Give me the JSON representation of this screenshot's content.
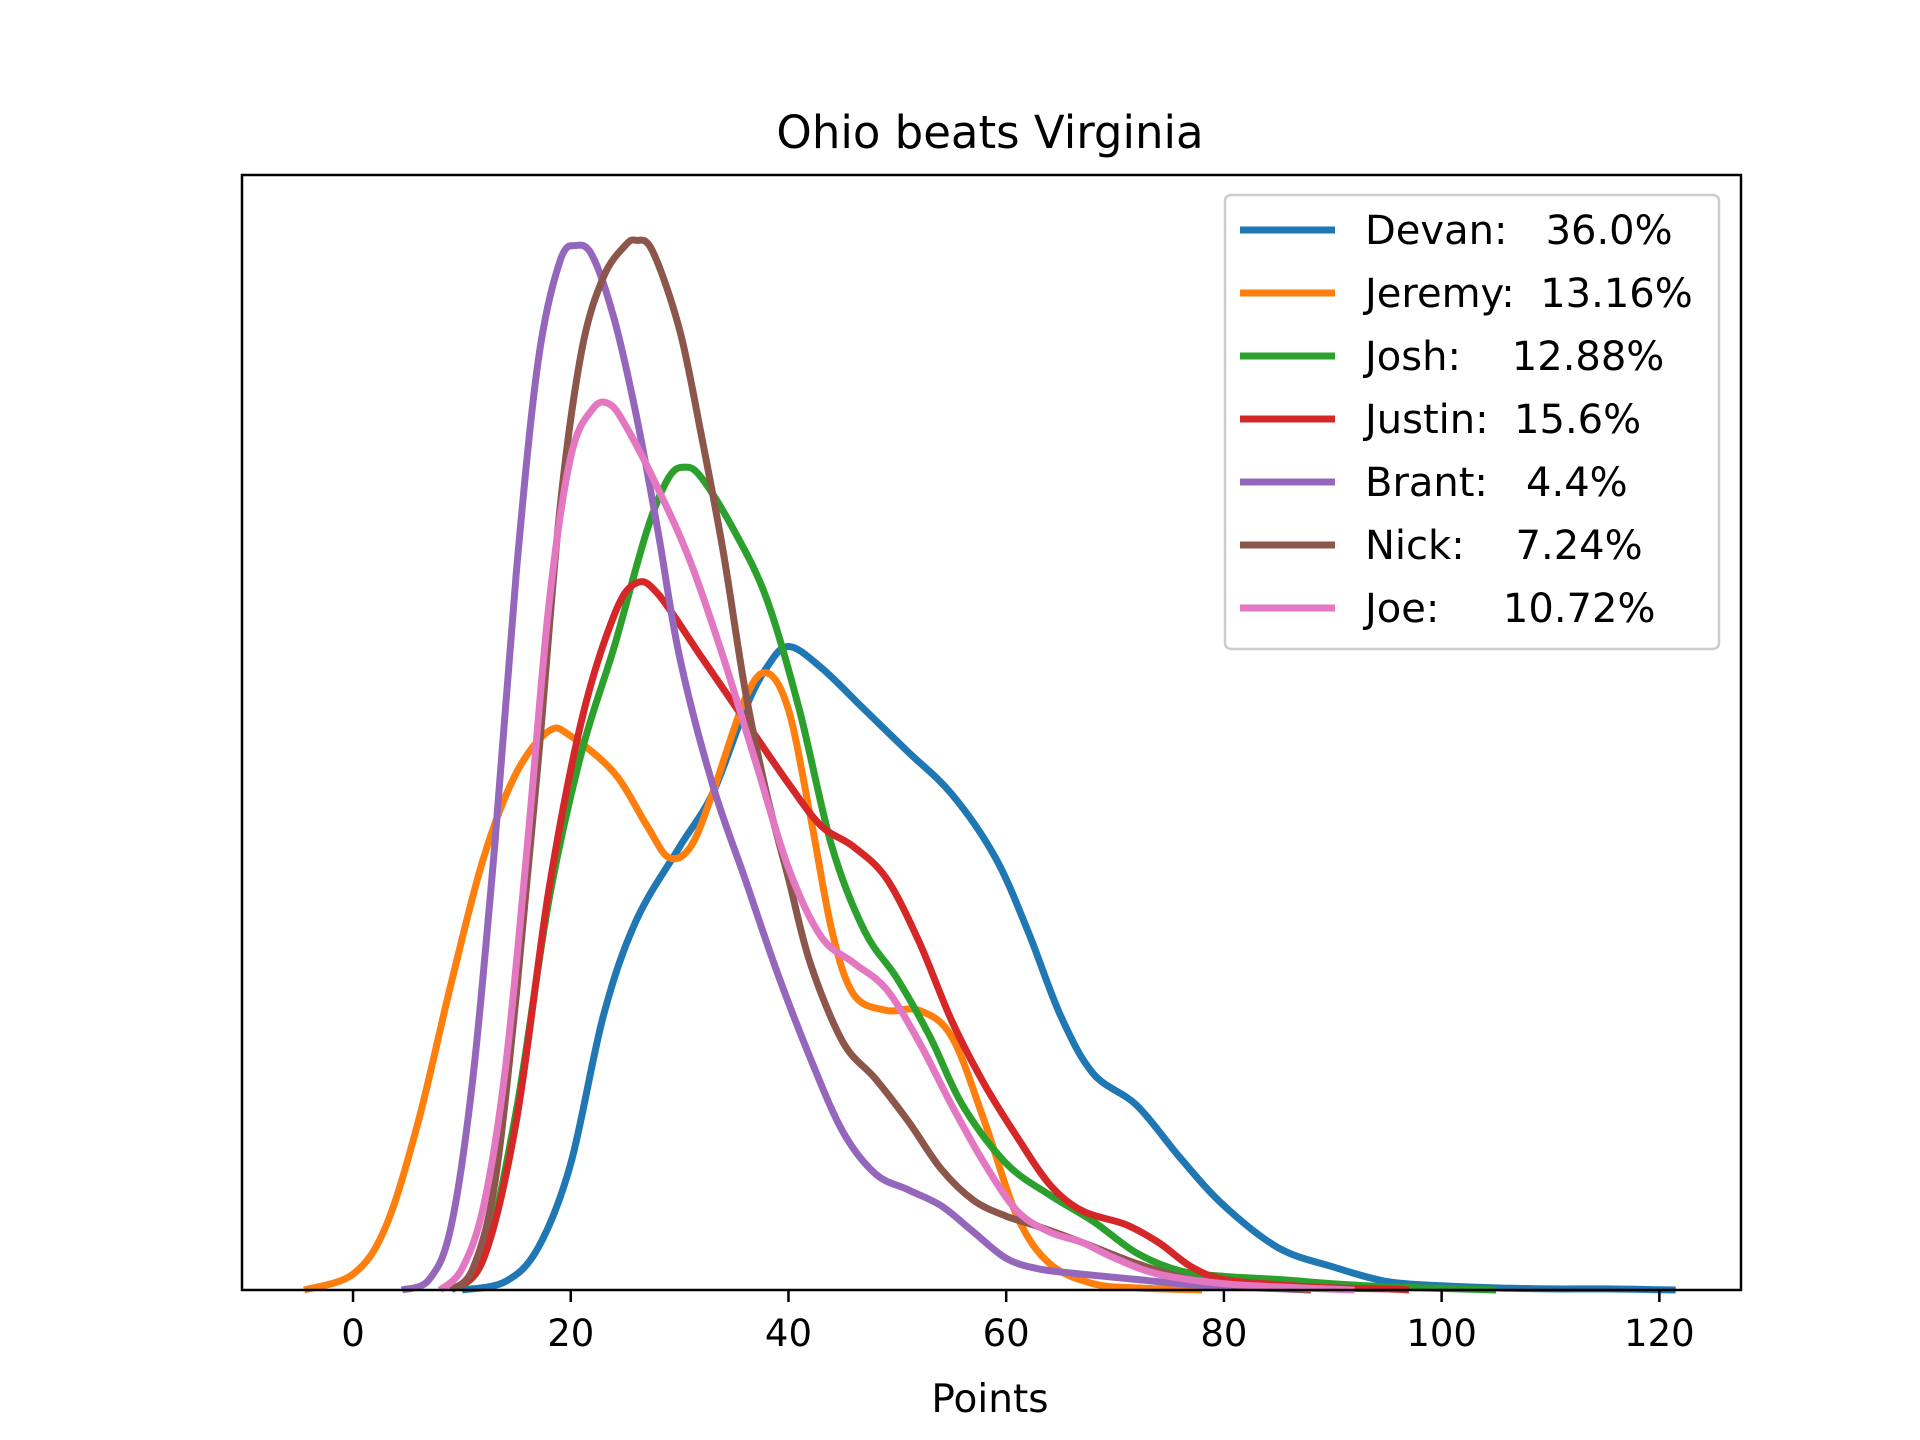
{
  "chart_data": {
    "type": "line",
    "title": "Ohio beats Virginia",
    "xlabel": "Points",
    "ylabel": "",
    "xlim": [
      -10.2,
      127.5
    ],
    "ylim": [
      0,
      1.0
    ],
    "xticks": [
      0,
      20,
      40,
      60,
      80,
      100,
      120
    ],
    "xtick_labels": [
      "0",
      "20",
      "40",
      "60",
      "80",
      "100",
      "120"
    ],
    "y_ticks_visible": false,
    "grid": false,
    "legend_position": "top-right",
    "series": [
      {
        "name": "Devan:   36.0%",
        "color": "#1f77b4",
        "points": [
          [
            10,
            0.0
          ],
          [
            14,
            0.008
          ],
          [
            17,
            0.04
          ],
          [
            20,
            0.12
          ],
          [
            23,
            0.26
          ],
          [
            26,
            0.35
          ],
          [
            30,
            0.42
          ],
          [
            33,
            0.47
          ],
          [
            36,
            0.55
          ],
          [
            38,
            0.59
          ],
          [
            40,
            0.61
          ],
          [
            43,
            0.59
          ],
          [
            47,
            0.55
          ],
          [
            51,
            0.51
          ],
          [
            55,
            0.47
          ],
          [
            59,
            0.41
          ],
          [
            62,
            0.34
          ],
          [
            65,
            0.26
          ],
          [
            68,
            0.205
          ],
          [
            72,
            0.175
          ],
          [
            76,
            0.125
          ],
          [
            80,
            0.08
          ],
          [
            85,
            0.04
          ],
          [
            90,
            0.022
          ],
          [
            95,
            0.008
          ],
          [
            100,
            0.004
          ],
          [
            105,
            0.002
          ],
          [
            110,
            0.001
          ],
          [
            115,
            0.001
          ],
          [
            121.5,
            0.0
          ]
        ]
      },
      {
        "name": "Jeremy:  13.16%",
        "color": "#ff7f0e",
        "points": [
          [
            -4.5,
            0.0
          ],
          [
            0,
            0.015
          ],
          [
            3,
            0.06
          ],
          [
            6,
            0.16
          ],
          [
            9,
            0.29
          ],
          [
            12,
            0.41
          ],
          [
            15,
            0.49
          ],
          [
            18,
            0.53
          ],
          [
            20,
            0.525
          ],
          [
            24,
            0.49
          ],
          [
            27,
            0.44
          ],
          [
            29,
            0.41
          ],
          [
            31,
            0.42
          ],
          [
            33,
            0.47
          ],
          [
            36,
            0.56
          ],
          [
            38,
            0.585
          ],
          [
            40,
            0.55
          ],
          [
            42,
            0.45
          ],
          [
            44,
            0.34
          ],
          [
            46,
            0.28
          ],
          [
            49,
            0.265
          ],
          [
            52,
            0.265
          ],
          [
            55,
            0.24
          ],
          [
            58,
            0.16
          ],
          [
            61,
            0.07
          ],
          [
            64,
            0.025
          ],
          [
            68,
            0.006
          ],
          [
            72,
            0.002
          ],
          [
            78,
            0.0
          ]
        ]
      },
      {
        "name": "Josh:    12.88%",
        "color": "#2ca02c",
        "points": [
          [
            9,
            0.0
          ],
          [
            12,
            0.03
          ],
          [
            15,
            0.17
          ],
          [
            18,
            0.37
          ],
          [
            21,
            0.51
          ],
          [
            24,
            0.61
          ],
          [
            27,
            0.72
          ],
          [
            29,
            0.77
          ],
          [
            30.5,
            0.78
          ],
          [
            32,
            0.77
          ],
          [
            35,
            0.72
          ],
          [
            38,
            0.655
          ],
          [
            41,
            0.55
          ],
          [
            44,
            0.42
          ],
          [
            47,
            0.34
          ],
          [
            50,
            0.295
          ],
          [
            53,
            0.24
          ],
          [
            56,
            0.175
          ],
          [
            60,
            0.12
          ],
          [
            64,
            0.09
          ],
          [
            68,
            0.065
          ],
          [
            72,
            0.035
          ],
          [
            76,
            0.018
          ],
          [
            80,
            0.013
          ],
          [
            85,
            0.01
          ],
          [
            90,
            0.006
          ],
          [
            95,
            0.003
          ],
          [
            100,
            0.0015
          ],
          [
            105,
            0.0
          ]
        ]
      },
      {
        "name": "Justin:  15.6%",
        "color": "#d62728",
        "points": [
          [
            9,
            0.0
          ],
          [
            12,
            0.03
          ],
          [
            15,
            0.16
          ],
          [
            18,
            0.38
          ],
          [
            21,
            0.54
          ],
          [
            24,
            0.64
          ],
          [
            26,
            0.67
          ],
          [
            28,
            0.66
          ],
          [
            32,
            0.6
          ],
          [
            36,
            0.54
          ],
          [
            40,
            0.48
          ],
          [
            43,
            0.44
          ],
          [
            46,
            0.42
          ],
          [
            49,
            0.39
          ],
          [
            52,
            0.33
          ],
          [
            55,
            0.255
          ],
          [
            58,
            0.195
          ],
          [
            61,
            0.145
          ],
          [
            64,
            0.1
          ],
          [
            67,
            0.075
          ],
          [
            71,
            0.062
          ],
          [
            74,
            0.045
          ],
          [
            77,
            0.022
          ],
          [
            80,
            0.01
          ],
          [
            85,
            0.005
          ],
          [
            90,
            0.002
          ],
          [
            95,
            0.001
          ],
          [
            97,
            0.0
          ]
        ]
      },
      {
        "name": "Brant:   4.4%",
        "color": "#9467bd",
        "points": [
          [
            4.5,
            0.0
          ],
          [
            7,
            0.01
          ],
          [
            9,
            0.06
          ],
          [
            11,
            0.2
          ],
          [
            13,
            0.42
          ],
          [
            15,
            0.68
          ],
          [
            17,
            0.88
          ],
          [
            19,
            0.975
          ],
          [
            20.5,
            0.99
          ],
          [
            22,
            0.98
          ],
          [
            24,
            0.92
          ],
          [
            26,
            0.83
          ],
          [
            28,
            0.72
          ],
          [
            30,
            0.6
          ],
          [
            33,
            0.48
          ],
          [
            36,
            0.39
          ],
          [
            39,
            0.3
          ],
          [
            42,
            0.22
          ],
          [
            45,
            0.15
          ],
          [
            48,
            0.11
          ],
          [
            51,
            0.095
          ],
          [
            54,
            0.08
          ],
          [
            57,
            0.055
          ],
          [
            60,
            0.03
          ],
          [
            63,
            0.02
          ],
          [
            67,
            0.015
          ],
          [
            72,
            0.01
          ],
          [
            77,
            0.005
          ],
          [
            83,
            0.002
          ],
          [
            88,
            0.0
          ]
        ]
      },
      {
        "name": "Nick:    7.24%",
        "color": "#8c564b",
        "points": [
          [
            9,
            0.0
          ],
          [
            11,
            0.02
          ],
          [
            13,
            0.1
          ],
          [
            15,
            0.28
          ],
          [
            17,
            0.5
          ],
          [
            19,
            0.74
          ],
          [
            21,
            0.89
          ],
          [
            23,
            0.96
          ],
          [
            25,
            0.99
          ],
          [
            26,
            0.995
          ],
          [
            27.5,
            0.985
          ],
          [
            30,
            0.91
          ],
          [
            32,
            0.81
          ],
          [
            34,
            0.7
          ],
          [
            36,
            0.57
          ],
          [
            38,
            0.47
          ],
          [
            40,
            0.39
          ],
          [
            42,
            0.31
          ],
          [
            45,
            0.235
          ],
          [
            48,
            0.2
          ],
          [
            51,
            0.16
          ],
          [
            54,
            0.115
          ],
          [
            57,
            0.085
          ],
          [
            60,
            0.07
          ],
          [
            63,
            0.06
          ],
          [
            67,
            0.045
          ],
          [
            72,
            0.025
          ],
          [
            77,
            0.01
          ],
          [
            82,
            0.004
          ],
          [
            88,
            0.0
          ]
        ]
      },
      {
        "name": "Joe:     10.72%",
        "color": "#e377c2",
        "points": [
          [
            8,
            0.0
          ],
          [
            10,
            0.02
          ],
          [
            12,
            0.08
          ],
          [
            14,
            0.21
          ],
          [
            16,
            0.42
          ],
          [
            18,
            0.65
          ],
          [
            20,
            0.79
          ],
          [
            22,
            0.835
          ],
          [
            23.5,
            0.84
          ],
          [
            25,
            0.82
          ],
          [
            28,
            0.76
          ],
          [
            31,
            0.69
          ],
          [
            34,
            0.6
          ],
          [
            37,
            0.5
          ],
          [
            40,
            0.4
          ],
          [
            43,
            0.335
          ],
          [
            46,
            0.31
          ],
          [
            49,
            0.285
          ],
          [
            52,
            0.235
          ],
          [
            55,
            0.175
          ],
          [
            58,
            0.12
          ],
          [
            61,
            0.075
          ],
          [
            64,
            0.055
          ],
          [
            67,
            0.045
          ],
          [
            70,
            0.03
          ],
          [
            74,
            0.015
          ],
          [
            80,
            0.006
          ],
          [
            87,
            0.002
          ],
          [
            92,
            0.0
          ]
        ]
      }
    ]
  }
}
